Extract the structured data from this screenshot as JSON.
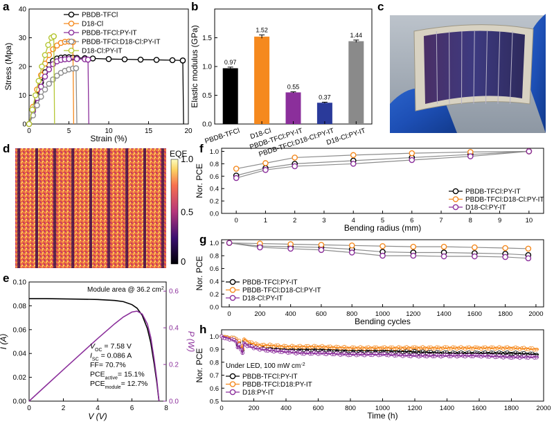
{
  "panel_labels": {
    "a": "a",
    "b": "b",
    "c": "c",
    "d": "d",
    "e": "e",
    "f": "f",
    "g": "g",
    "h": "h"
  },
  "colors": {
    "black": "#000000",
    "orange": "#f5891e",
    "purple": "#8b2f9b",
    "gray": "#8c8c8c",
    "olive": "#b5c634",
    "navy": "#2a3a9a",
    "lightgray": "#8a8a8a"
  },
  "chart_data": [
    {
      "id": "a",
      "type": "line",
      "xlabel": "Strain (%)",
      "ylabel": "Stress (Mpa)",
      "xlim": [
        0,
        20
      ],
      "ylim": [
        0,
        40
      ],
      "xticks": [
        0,
        5,
        10,
        15,
        20
      ],
      "yticks": [
        0,
        10,
        20,
        30,
        40
      ],
      "series": [
        {
          "name": "PBDB-TFCl",
          "color": "#000000",
          "x": [
            0,
            0.5,
            1,
            1.5,
            2,
            2.5,
            3,
            3.5,
            4,
            4.5,
            5,
            5.5,
            6,
            7,
            8,
            10,
            12,
            14,
            16,
            18,
            19.3,
            19.4
          ],
          "y": [
            0,
            5,
            10,
            14.5,
            18,
            20.5,
            22,
            22.8,
            23.1,
            23.2,
            23.2,
            23.1,
            23,
            22.9,
            22.8,
            22.6,
            22.5,
            22.4,
            22.3,
            22.2,
            22.1,
            0
          ]
        },
        {
          "name": "D18-Cl",
          "color": "#f5891e",
          "x": [
            0,
            0.5,
            1,
            1.5,
            2,
            2.5,
            3,
            3.5,
            4,
            4.5,
            5,
            5.5,
            5.6
          ],
          "y": [
            0,
            6,
            12,
            17,
            21,
            24,
            26,
            27.3,
            28.2,
            28.6,
            28.7,
            28.5,
            0
          ]
        },
        {
          "name": "PBDB-TFCl:PY-IT",
          "color": "#8b2f9b",
          "x": [
            0,
            0.5,
            1,
            1.5,
            2,
            2.5,
            3,
            3.5,
            4,
            4.5,
            5,
            6,
            7,
            7.4,
            7.5
          ],
          "y": [
            0,
            4.5,
            9,
            13,
            16.5,
            19,
            20.8,
            21.8,
            22.3,
            22.5,
            22.6,
            22.6,
            22.5,
            22.4,
            0
          ]
        },
        {
          "name": "PBDB-TFCl:D18-Cl:PY-IT",
          "color": "#8c8c8c",
          "x": [
            0,
            0.5,
            1,
            1.5,
            2,
            2.5,
            3,
            3.5,
            4,
            4.5,
            5,
            5.5,
            5.9,
            6
          ],
          "y": [
            0,
            3,
            6.5,
            9.5,
            12,
            14,
            15.5,
            16.8,
            17.8,
            18.5,
            19,
            19.3,
            19.4,
            0
          ]
        },
        {
          "name": "D18-Cl:PY-IT",
          "color": "#b5c634",
          "x": [
            0,
            0.4,
            0.8,
            1.2,
            1.6,
            2,
            2.4,
            2.8,
            3.1,
            3.2
          ],
          "y": [
            0,
            5,
            10,
            15,
            20,
            24,
            27.5,
            30,
            30.5,
            0
          ]
        }
      ]
    },
    {
      "id": "b",
      "type": "bar",
      "ylabel": "Elastic modulus (GPa)",
      "ylim": [
        0,
        2.0
      ],
      "yticks": [
        0,
        0.5,
        1.0,
        1.5
      ],
      "categories": [
        "PBDB-TFCl",
        "D18-Cl",
        "PBDB-TFCl:PY-IT",
        "PBDB-TFCl:D18-Cl:PY-IT",
        "D18-Cl:PY-IT"
      ],
      "values": [
        0.97,
        1.52,
        0.55,
        0.37,
        1.44
      ],
      "errors": [
        0.02,
        0.03,
        0.01,
        0.01,
        0.02
      ],
      "labels": [
        "0.97",
        "1.52",
        "0.55",
        "0.37",
        "1.44"
      ],
      "colors": [
        "#000000",
        "#f5891e",
        "#8b2f9b",
        "#2a3a9a",
        "#8a8a8a"
      ]
    },
    {
      "id": "d",
      "type": "heatmap",
      "colorbar_label": "EQE",
      "colorbar_ticks": [
        "1.0",
        "0.5",
        "0"
      ],
      "stripes": 8
    },
    {
      "id": "e",
      "type": "line",
      "xlabel": "V (V)",
      "ylabel": "I (A)",
      "y2label": "P (W)",
      "xlim": [
        0,
        8
      ],
      "ylim": [
        0,
        0.1
      ],
      "y2lim": [
        0,
        0.65
      ],
      "xticks": [
        0,
        2,
        4,
        6,
        8
      ],
      "yticks": [
        0,
        0.02,
        0.04,
        0.06,
        0.08,
        0.1
      ],
      "y2ticks": [
        0,
        0.2,
        0.4,
        0.6
      ],
      "annotation": "Module area @ 36.2 cm",
      "annotation_sup": "2",
      "stats": [
        "V",
        "OC",
        "= 7.58 V",
        "I",
        "SC",
        "= 0.086 A",
        "FF= 70.7%",
        "PCE",
        "active",
        "= 15.1%",
        "PCE",
        "module",
        "= 12.7%"
      ],
      "series": [
        {
          "name": "I-V",
          "color": "#000000",
          "x": [
            0,
            1,
            2,
            3,
            4,
            5,
            5.5,
            6,
            6.3,
            6.6,
            6.9,
            7.1,
            7.3,
            7.45,
            7.58
          ],
          "y": [
            0.086,
            0.086,
            0.0858,
            0.0856,
            0.0853,
            0.0845,
            0.0835,
            0.081,
            0.078,
            0.072,
            0.061,
            0.049,
            0.031,
            0.016,
            0
          ]
        },
        {
          "name": "P-V",
          "color": "#8b2f9b",
          "x": [
            0,
            1,
            2,
            3,
            4,
            5,
            5.5,
            6,
            6.3,
            6.6,
            6.9,
            7.1,
            7.3,
            7.45,
            7.58
          ],
          "y": [
            0,
            0.086,
            0.1716,
            0.2568,
            0.3412,
            0.4225,
            0.459,
            0.486,
            0.491,
            0.475,
            0.421,
            0.348,
            0.226,
            0.119,
            0
          ]
        }
      ]
    },
    {
      "id": "f",
      "type": "line",
      "xlabel": "Bending radius (mm)",
      "ylabel": "Nor. PCE",
      "xlim": [
        -0.5,
        10.5
      ],
      "ylim": [
        0,
        1.05
      ],
      "xticks": [
        0,
        1,
        2,
        3,
        4,
        5,
        6,
        7,
        8,
        9,
        10
      ],
      "yticks": [
        0,
        0.2,
        0.4,
        0.6,
        0.8,
        1.0
      ],
      "series": [
        {
          "name": "PBDB-TFCl:PY-IT",
          "color": "#000000",
          "x": [
            0,
            1,
            2,
            4,
            6,
            8,
            10
          ],
          "y": [
            0.61,
            0.73,
            0.8,
            0.85,
            0.9,
            0.95,
            1.0
          ]
        },
        {
          "name": "PBDB-TFCl:D18-Cl:PY-IT",
          "color": "#f5891e",
          "x": [
            0,
            1,
            2,
            4,
            6,
            8,
            10
          ],
          "y": [
            0.72,
            0.81,
            0.9,
            0.94,
            0.97,
            0.99,
            1.0
          ]
        },
        {
          "name": "D18-Cl:PY-IT",
          "color": "#8b2f9b",
          "x": [
            0,
            1,
            2,
            4,
            6,
            8,
            10
          ],
          "y": [
            0.57,
            0.7,
            0.76,
            0.8,
            0.86,
            0.92,
            1.0
          ]
        }
      ]
    },
    {
      "id": "g",
      "type": "line",
      "xlabel": "Bending cycles",
      "ylabel": "Nor. PCE",
      "xlim": [
        -50,
        2050
      ],
      "ylim": [
        0,
        1.05
      ],
      "xticks": [
        0,
        200,
        400,
        600,
        800,
        1000,
        1200,
        1400,
        1600,
        1800,
        2000
      ],
      "yticks": [
        0,
        0.2,
        0.4,
        0.6,
        0.8,
        1.0
      ],
      "series": [
        {
          "name": "PBDB-TFCl:PY-IT",
          "color": "#000000",
          "x": [
            0,
            200,
            400,
            600,
            800,
            1000,
            1200,
            1400,
            1600,
            1800,
            1950
          ],
          "y": [
            1.0,
            0.95,
            0.94,
            0.93,
            0.9,
            0.86,
            0.85,
            0.85,
            0.84,
            0.83,
            0.81
          ]
        },
        {
          "name": "PBDB-TFCl:D18-Cl:PY-IT",
          "color": "#f5891e",
          "x": [
            0,
            200,
            400,
            600,
            800,
            1000,
            1200,
            1400,
            1600,
            1800,
            1950
          ],
          "y": [
            1.0,
            0.99,
            0.98,
            0.97,
            0.96,
            0.95,
            0.94,
            0.94,
            0.93,
            0.92,
            0.91
          ]
        },
        {
          "name": "D18-Cl:PY-IT",
          "color": "#8b2f9b",
          "x": [
            0,
            200,
            400,
            600,
            800,
            1000,
            1200,
            1400,
            1600,
            1800,
            1950
          ],
          "y": [
            1.0,
            0.93,
            0.91,
            0.89,
            0.85,
            0.8,
            0.8,
            0.79,
            0.79,
            0.78,
            0.76
          ]
        }
      ]
    },
    {
      "id": "h",
      "type": "line",
      "xlabel": "Time (h)",
      "ylabel": "Nor. PCE",
      "xlim": [
        0,
        2000
      ],
      "ylim": [
        0.5,
        1.05
      ],
      "xticks": [
        0,
        200,
        400,
        600,
        800,
        1000,
        1200,
        1400,
        1600,
        1800,
        2000
      ],
      "yticks": [
        0.5,
        0.6,
        0.7,
        0.8,
        0.9,
        1.0
      ],
      "annotation": "Under LED, 100 mW cm",
      "annotation_sup": "-2",
      "series": [
        {
          "name": "PBDB-TFCl:PY-IT",
          "color": "#000000",
          "x": [
            0,
            20,
            50,
            90,
            100,
            110,
            130,
            140,
            160,
            200,
            250,
            300,
            400,
            500,
            600,
            800,
            1000,
            1200,
            1400,
            1600,
            1800,
            1970
          ],
          "y": [
            1.0,
            1.0,
            0.99,
            0.98,
            0.93,
            0.95,
            0.89,
            0.97,
            0.95,
            0.93,
            0.92,
            0.91,
            0.9,
            0.9,
            0.9,
            0.89,
            0.89,
            0.88,
            0.87,
            0.87,
            0.87,
            0.86
          ]
        },
        {
          "name": "PBDB-TFCl:D18:PY-IT",
          "color": "#f5891e",
          "x": [
            0,
            20,
            50,
            90,
            100,
            110,
            130,
            140,
            160,
            200,
            250,
            300,
            400,
            500,
            600,
            800,
            1000,
            1200,
            1400,
            1600,
            1800,
            1970
          ],
          "y": [
            1.0,
            1.0,
            0.99,
            0.98,
            0.95,
            0.96,
            0.9,
            0.98,
            0.96,
            0.94,
            0.93,
            0.93,
            0.92,
            0.92,
            0.92,
            0.91,
            0.91,
            0.91,
            0.91,
            0.91,
            0.91,
            0.9
          ]
        },
        {
          "name": "D18:PY-IT",
          "color": "#8b2f9b",
          "x": [
            0,
            20,
            50,
            90,
            100,
            110,
            130,
            140,
            160,
            200,
            250,
            300,
            400,
            500,
            600,
            800,
            1000,
            1200,
            1400,
            1600,
            1800,
            1970
          ],
          "y": [
            1.0,
            0.99,
            0.98,
            0.96,
            0.91,
            0.93,
            0.87,
            0.95,
            0.93,
            0.91,
            0.9,
            0.89,
            0.88,
            0.87,
            0.87,
            0.86,
            0.86,
            0.85,
            0.85,
            0.85,
            0.84,
            0.84
          ]
        }
      ]
    }
  ]
}
